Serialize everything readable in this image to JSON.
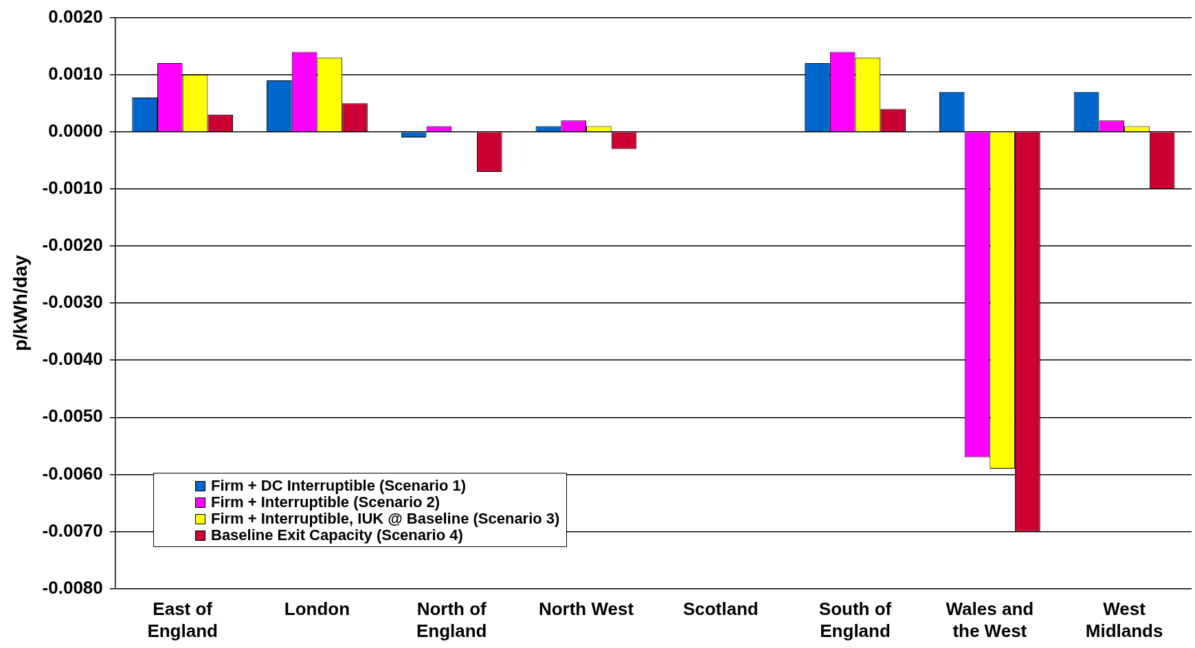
{
  "chart_data": {
    "type": "bar",
    "ylabel": "p/kWh/day",
    "categories": [
      "East of England",
      "London",
      "North of England",
      "North West",
      "Scotland",
      "South of England",
      "Wales and the West",
      "West Midlands"
    ],
    "series": [
      {
        "name": "Firm + DC Interruptible (Scenario 1)",
        "color": "#0066cc",
        "values": [
          0.0006,
          0.0009,
          -0.0001,
          0.0001,
          0,
          0.0012,
          0.0007,
          0.0007
        ]
      },
      {
        "name": "Firm + Interruptible (Scenario 2)",
        "color": "#ff00ff",
        "values": [
          0.0012,
          0.0014,
          0.0001,
          0.0002,
          0,
          0.0014,
          -0.0057,
          0.0002
        ]
      },
      {
        "name": "Firm + Interruptible, IUK @ Baseline (Scenario 3)",
        "color": "#ffff00",
        "values": [
          0.001,
          0.0013,
          0,
          0.0001,
          0,
          0.0013,
          -0.0059,
          0.0001
        ]
      },
      {
        "name": "Baseline Exit Capacity (Scenario 4)",
        "color": "#cc0033",
        "values": [
          0.0003,
          0.0005,
          -0.0007,
          -0.0003,
          0,
          0.0004,
          -0.007,
          -0.001
        ]
      }
    ],
    "ylim": [
      -0.008,
      0.002
    ],
    "yticks": [
      {
        "value": -0.008,
        "label": "-0.0080"
      },
      {
        "value": -0.007,
        "label": "-0.0070"
      },
      {
        "value": -0.006,
        "label": "-0.0060"
      },
      {
        "value": -0.005,
        "label": "-0.0050"
      },
      {
        "value": -0.004,
        "label": "-0.0040"
      },
      {
        "value": -0.003,
        "label": "-0.0030"
      },
      {
        "value": -0.002,
        "label": "-0.0020"
      },
      {
        "value": -0.001,
        "label": "-0.0010"
      },
      {
        "value": 0,
        "label": "0.0000"
      },
      {
        "value": 0.001,
        "label": "0.0010"
      },
      {
        "value": 0.002,
        "label": "0.0020"
      }
    ],
    "grid": "y",
    "legend": "bottom left"
  }
}
